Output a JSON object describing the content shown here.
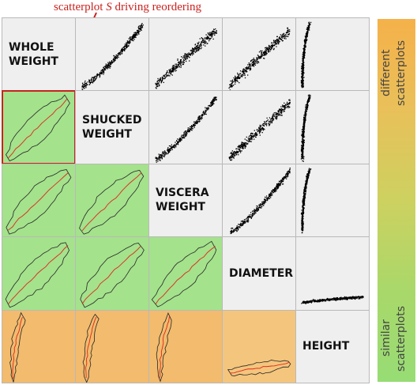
{
  "annotation": {
    "prefix": "scatterplot ",
    "symbol": "S",
    "suffix": " driving reordering"
  },
  "variables": [
    "WHOLE\nWEIGHT",
    "SHUCKED\nWEIGHT",
    "VISCERA\nWEIGHT",
    "DIAMETER",
    "HEIGHT"
  ],
  "colorbar": {
    "top_label": "different\nscatterplots",
    "bottom_label": "similar\nscatterplots"
  },
  "colors": {
    "green": "#a4e28c",
    "green_light": "#b6e79a",
    "orange": "#f2bb6d",
    "orange_light": "#f4c57c",
    "highlight": "#c8231f",
    "diagonal": "#efefef"
  },
  "lower_cells": [
    {
      "row": 1,
      "col": 0,
      "color": "green",
      "highlight": true
    },
    {
      "row": 2,
      "col": 0,
      "color": "green"
    },
    {
      "row": 2,
      "col": 1,
      "color": "green"
    },
    {
      "row": 3,
      "col": 0,
      "color": "green"
    },
    {
      "row": 3,
      "col": 1,
      "color": "green"
    },
    {
      "row": 3,
      "col": 2,
      "color": "green"
    },
    {
      "row": 4,
      "col": 0,
      "color": "orange"
    },
    {
      "row": 4,
      "col": 1,
      "color": "orange"
    },
    {
      "row": 4,
      "col": 2,
      "color": "orange"
    },
    {
      "row": 4,
      "col": 3,
      "color": "orange_light"
    }
  ]
}
